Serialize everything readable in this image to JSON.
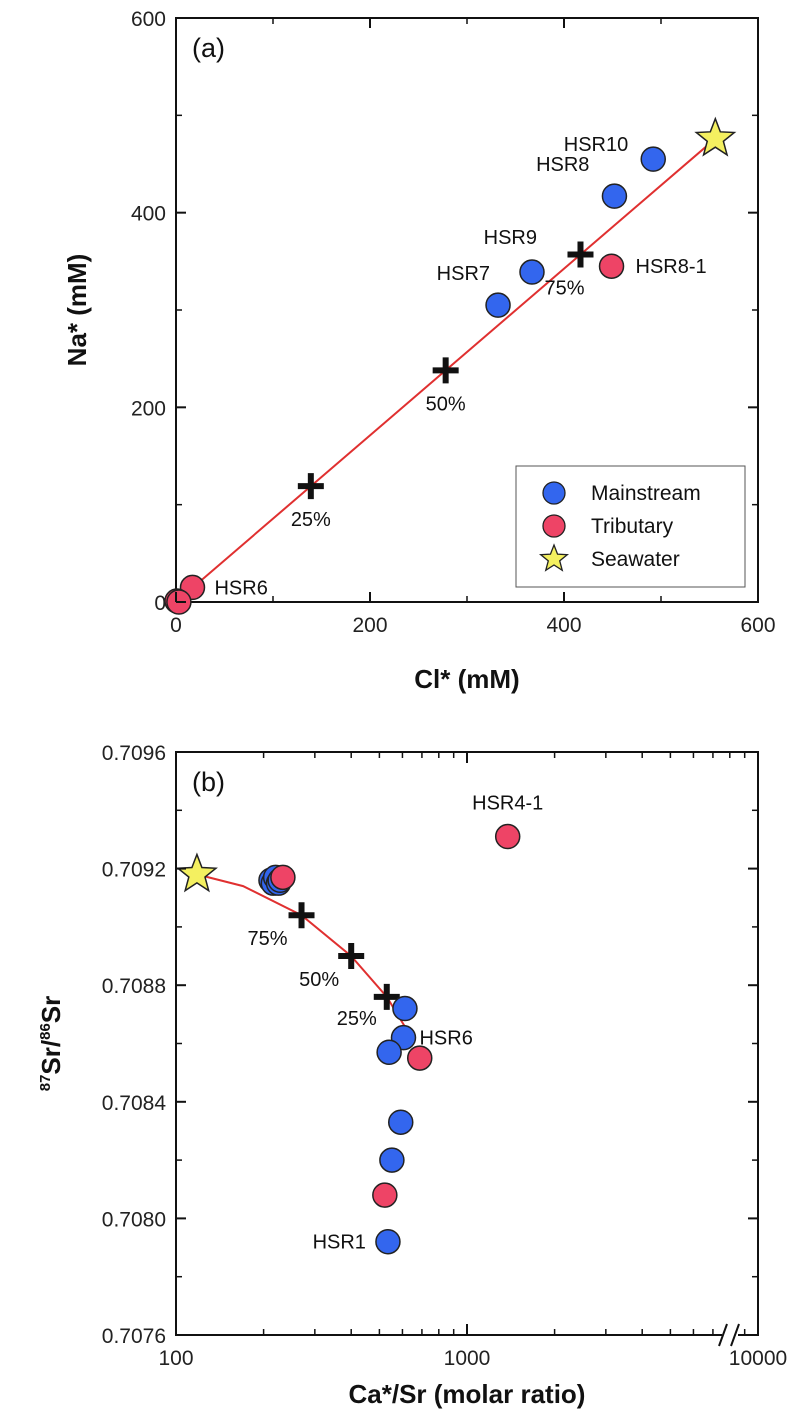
{
  "colors": {
    "mainstream": "#3366ee",
    "tributary": "#ee4466",
    "seawater": "#f4f060",
    "mixing_line": "#e03030",
    "axis": "#111111"
  },
  "chart_data": [
    {
      "type": "scatter",
      "panel_label": "(a)",
      "xlabel": "Cl* (mM)",
      "ylabel": "Na* (mM)",
      "xlim": [
        0,
        600
      ],
      "ylim": [
        0,
        600
      ],
      "xticks": [
        0,
        200,
        400,
        600
      ],
      "yticks": [
        0,
        200,
        400,
        600
      ],
      "legend": {
        "position": "bottom-right",
        "entries": [
          {
            "name": "Mainstream",
            "marker": "circle",
            "group": "mainstream"
          },
          {
            "name": "Tributary",
            "marker": "circle",
            "group": "tributary"
          },
          {
            "name": "Seawater",
            "marker": "star",
            "group": "seawater"
          }
        ]
      },
      "series": [
        {
          "name": "Mainstream",
          "points": [
            {
              "x": 492,
              "y": 455,
              "label": "HSR10"
            },
            {
              "x": 452,
              "y": 417,
              "label": "HSR8"
            },
            {
              "x": 367,
              "y": 339,
              "label": "HSR9"
            },
            {
              "x": 332,
              "y": 305,
              "label": "HSR7"
            }
          ]
        },
        {
          "name": "Tributary",
          "points": [
            {
              "x": 449,
              "y": 345,
              "label": "HSR8-1"
            },
            {
              "x": 17,
              "y": 15,
              "label": "HSR6"
            },
            {
              "x": 1,
              "y": 1,
              "label": ""
            },
            {
              "x": 3,
              "y": 0,
              "label": ""
            }
          ]
        },
        {
          "name": "Seawater",
          "points": [
            {
              "x": 556,
              "y": 476,
              "label": ""
            }
          ]
        }
      ],
      "mixing_line": [
        [
          0,
          0
        ],
        [
          556,
          476
        ]
      ],
      "mixing_markers": [
        {
          "x": 139,
          "y": 119,
          "label": "25%"
        },
        {
          "x": 278,
          "y": 238,
          "label": "50%"
        },
        {
          "x": 417,
          "y": 357,
          "label": "75%"
        }
      ]
    },
    {
      "type": "scatter",
      "panel_label": "(b)",
      "xlabel": "Ca*/Sr (molar ratio)",
      "ylabel_parts": {
        "sup1": "87",
        "base1": "Sr/",
        "sup2": "86",
        "base2": "Sr"
      },
      "xscale": "log",
      "xlim": [
        100,
        10000
      ],
      "ylim": [
        0.7076,
        0.7096
      ],
      "xticks": [
        100,
        1000,
        10000
      ],
      "xtick_labels": [
        "100",
        "1000",
        "10000"
      ],
      "yticks": [
        0.7076,
        0.708,
        0.7084,
        0.7088,
        0.7092,
        0.7096
      ],
      "ytick_labels": [
        "0.7076",
        "0.7080",
        "0.7084",
        "0.7088",
        "0.7092",
        "0.7096"
      ],
      "axis_break": "x-axis near 10000",
      "series": [
        {
          "name": "Mainstream",
          "points": [
            {
              "x": 212,
              "y": 0.70916,
              "label": ""
            },
            {
              "x": 216,
              "y": 0.70915,
              "label": ""
            },
            {
              "x": 220,
              "y": 0.70917,
              "label": ""
            },
            {
              "x": 225,
              "y": 0.70915,
              "label": ""
            },
            {
              "x": 228,
              "y": 0.70916,
              "label": ""
            },
            {
              "x": 612,
              "y": 0.70872,
              "label": ""
            },
            {
              "x": 605,
              "y": 0.70862,
              "label": "HSR6"
            },
            {
              "x": 540,
              "y": 0.70857,
              "label": ""
            },
            {
              "x": 592,
              "y": 0.70833,
              "label": ""
            },
            {
              "x": 552,
              "y": 0.7082,
              "label": ""
            },
            {
              "x": 535,
              "y": 0.70792,
              "label": "HSR1"
            }
          ]
        },
        {
          "name": "Tributary",
          "points": [
            {
              "x": 1380,
              "y": 0.70931,
              "label": "HSR4-1"
            },
            {
              "x": 233,
              "y": 0.70917,
              "label": ""
            },
            {
              "x": 688,
              "y": 0.70855,
              "label": ""
            },
            {
              "x": 522,
              "y": 0.70808,
              "label": ""
            }
          ]
        },
        {
          "name": "Seawater",
          "points": [
            {
              "x": 118,
              "y": 0.70918,
              "label": ""
            }
          ]
        }
      ],
      "mixing_curve": [
        [
          118,
          0.70918
        ],
        [
          170,
          0.70914
        ],
        [
          270,
          0.70904
        ],
        [
          400,
          0.7089
        ],
        [
          530,
          0.70876
        ],
        [
          610,
          0.70866
        ],
        [
          640,
          0.70862
        ]
      ],
      "mixing_markers": [
        {
          "x": 270,
          "y": 0.70904,
          "label": "75%"
        },
        {
          "x": 400,
          "y": 0.7089,
          "label": "50%"
        },
        {
          "x": 530,
          "y": 0.70876,
          "label": "25%"
        }
      ]
    }
  ]
}
